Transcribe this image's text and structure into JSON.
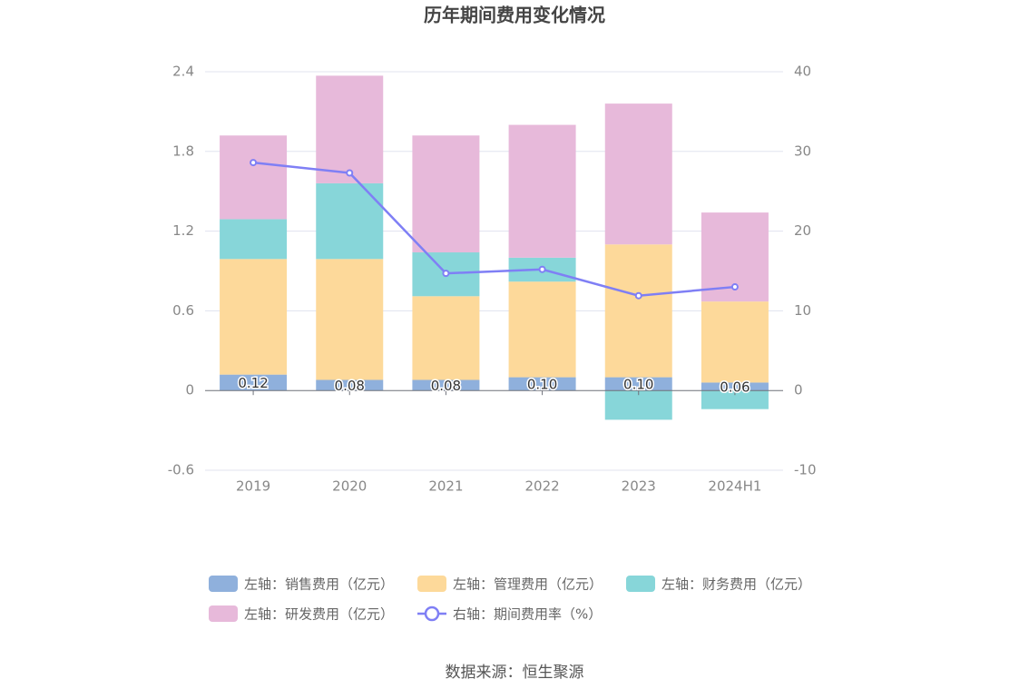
{
  "chart_data": {
    "type": "bar",
    "title": "历年期间费用变化情况",
    "categories": [
      "2019",
      "2020",
      "2021",
      "2022",
      "2023",
      "2024H1"
    ],
    "series": [
      {
        "name": "左轴：销售费用（亿元）",
        "color": "#8fb0dc",
        "values": [
          0.12,
          0.08,
          0.08,
          0.1,
          0.1,
          0.06
        ],
        "value_labels": [
          "0.12",
          "0.08",
          "0.08",
          "0.10",
          "0.10",
          "0.06"
        ]
      },
      {
        "name": "左轴：管理费用（亿元）",
        "color": "#fdd99a",
        "values": [
          0.87,
          0.91,
          0.63,
          0.72,
          1.0,
          0.61
        ]
      },
      {
        "name": "左轴：财务费用（亿元）",
        "color": "#87d6d9",
        "values": [
          0.3,
          0.57,
          0.33,
          0.18,
          -0.22,
          -0.14
        ]
      },
      {
        "name": "左轴：研发费用（亿元）",
        "color": "#e7b9da",
        "values": [
          0.63,
          0.81,
          0.88,
          1.0,
          1.06,
          0.67
        ]
      },
      {
        "name": "右轴：期间费用率（%）",
        "color": "#7f7ff5",
        "type": "line",
        "axis": "y2",
        "values": [
          28.6,
          27.3,
          14.7,
          15.2,
          11.9,
          13.0
        ]
      }
    ],
    "ylim": [
      -0.6,
      2.4
    ],
    "yticks": [
      -0.6,
      0,
      0.6,
      1.2,
      1.8,
      2.4
    ],
    "y2lim": [
      -10,
      40
    ],
    "y2ticks": [
      -10,
      0,
      10,
      20,
      30,
      40
    ],
    "grid": true,
    "legend": "bottom",
    "source": "数据来源：恒生聚源"
  }
}
